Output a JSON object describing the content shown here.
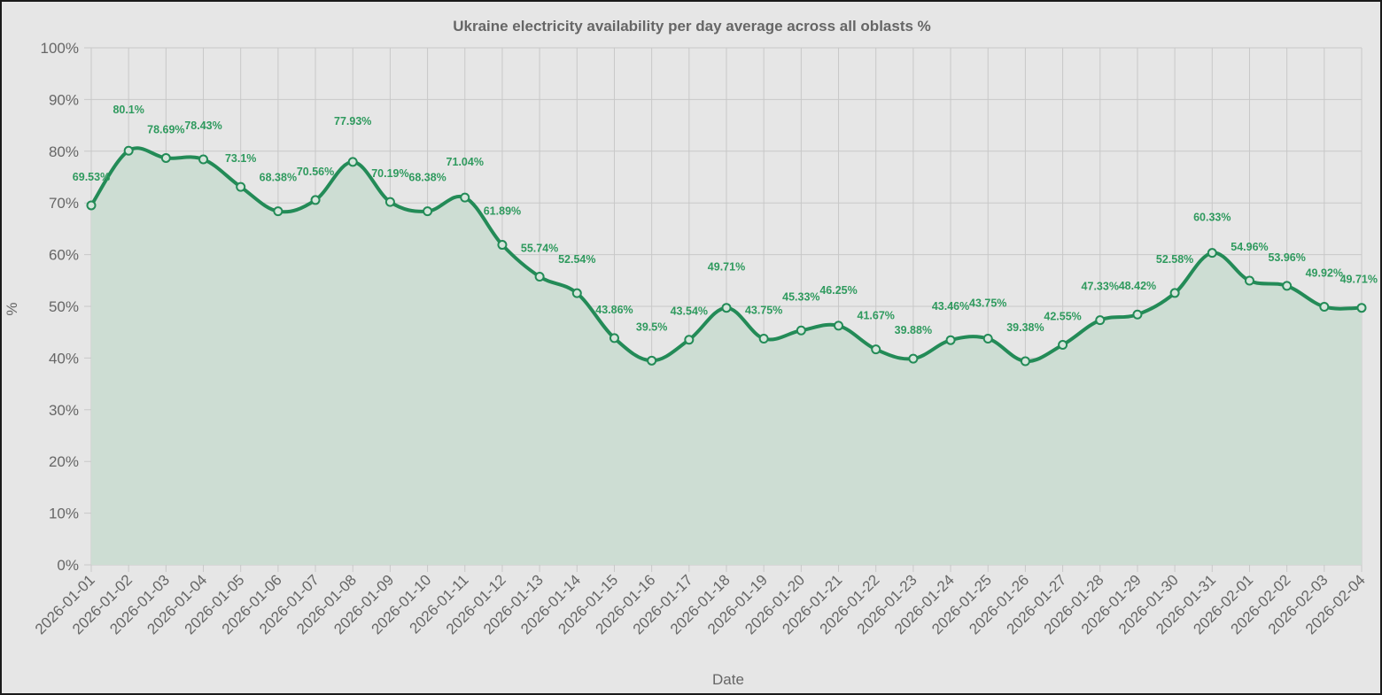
{
  "chart_data": {
    "type": "line",
    "title": "Ukraine electricity availability per day average across all oblasts %",
    "xlabel": "Date",
    "ylabel": "%",
    "ylim": [
      0,
      100
    ],
    "y_ticks": [
      "0%",
      "10%",
      "20%",
      "30%",
      "40%",
      "50%",
      "60%",
      "70%",
      "80%",
      "90%",
      "100%"
    ],
    "grid": true,
    "filled_area": true,
    "smoothed": true,
    "line_color": "#238b57",
    "fill_color": "#cdddd3",
    "label_color": "#2f9a5e",
    "x": [
      "2026-01-01",
      "2026-01-02",
      "2026-01-03",
      "2026-01-04",
      "2026-01-05",
      "2026-01-06",
      "2026-01-07",
      "2026-01-08",
      "2026-01-09",
      "2026-01-10",
      "2026-01-11",
      "2026-01-12",
      "2026-01-13",
      "2026-01-14",
      "2026-01-15",
      "2026-01-16",
      "2026-01-17",
      "2026-01-18",
      "2026-01-19",
      "2026-01-20",
      "2026-01-21",
      "2026-01-22",
      "2026-01-23",
      "2026-01-24",
      "2026-01-25",
      "2026-01-26",
      "2026-01-27",
      "2026-01-28",
      "2026-01-29",
      "2026-01-30",
      "2026-01-31",
      "2026-02-01",
      "2026-02-02",
      "2026-02-03",
      "2026-02-04"
    ],
    "values": [
      69.53,
      80.1,
      78.69,
      78.43,
      73.1,
      68.38,
      70.56,
      77.93,
      70.19,
      68.38,
      71.04,
      61.89,
      55.74,
      52.54,
      43.86,
      39.5,
      43.54,
      49.71,
      43.75,
      45.33,
      46.25,
      41.67,
      39.88,
      43.46,
      43.75,
      39.38,
      42.55,
      47.33,
      48.42,
      52.58,
      60.33,
      54.96,
      53.96,
      49.92,
      49.71
    ],
    "data_labels": [
      "69.53%",
      "80.1%",
      "78.69%",
      "78.43%",
      "73.1%",
      "68.38%",
      "70.56%",
      "77.93%",
      "70.19%",
      "68.38%",
      "71.04%",
      "61.89%",
      "55.74%",
      "52.54%",
      "43.86%",
      "39.5%",
      "43.54%",
      "49.71%",
      "43.75%",
      "45.33%",
      "46.25%",
      "41.67%",
      "39.88%",
      "43.46%",
      "43.75%",
      "39.38%",
      "42.55%",
      "47.33%",
      "48.42%",
      "52.58%",
      "60.33%",
      "54.96%",
      "53.96%",
      "49.92%",
      "49.71%"
    ]
  }
}
